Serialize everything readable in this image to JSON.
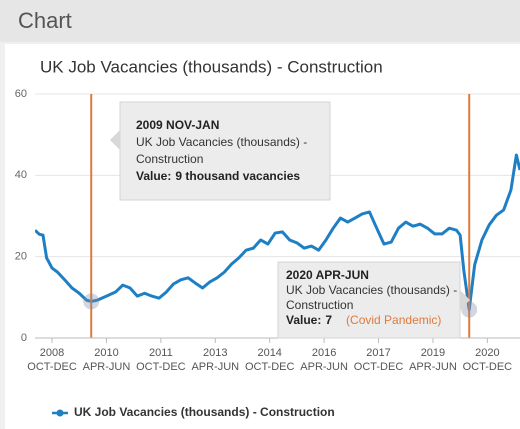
{
  "header": "Chart",
  "chart_data": {
    "type": "line",
    "title": "UK Job Vacancies (thousands) - Construction",
    "series": [
      {
        "name": "UK Job Vacancies (thousands) - Construction",
        "color": "#1f7fc4",
        "x": [
          2008.28,
          2008.4,
          2008.5,
          2008.6,
          2008.75,
          2008.9,
          2009.1,
          2009.3,
          2009.5,
          2009.7,
          2009.83,
          2010.0,
          2010.25,
          2010.5,
          2010.7,
          2010.9,
          2011.1,
          2011.3,
          2011.5,
          2011.7,
          2011.9,
          2012.1,
          2012.3,
          2012.5,
          2012.7,
          2012.9,
          2013.1,
          2013.3,
          2013.5,
          2013.7,
          2013.9,
          2014.1,
          2014.3,
          2014.5,
          2014.7,
          2014.9,
          2015.1,
          2015.3,
          2015.5,
          2015.7,
          2015.9,
          2016.1,
          2016.3,
          2016.5,
          2016.7,
          2016.9,
          2017.1,
          2017.3,
          2017.5,
          2017.7,
          2017.9,
          2018.1,
          2018.3,
          2018.5,
          2018.7,
          2018.9,
          2019.1,
          2019.3,
          2019.5,
          2019.7,
          2019.9,
          2020.0,
          2020.1,
          2020.25,
          2020.4,
          2020.6,
          2020.8,
          2021.0,
          2021.2,
          2021.4,
          2021.55,
          2021.65
        ],
        "values": [
          26.5,
          25.5,
          25.3,
          19.7,
          17.2,
          16.2,
          14.3,
          12.3,
          11,
          9.3,
          9,
          9.3,
          10.3,
          11.3,
          13,
          12.3,
          10.3,
          11,
          10.3,
          9.8,
          11.3,
          13.3,
          14.3,
          14.8,
          13.5,
          12.3,
          13.8,
          14.8,
          16.2,
          18.2,
          19.7,
          21.6,
          22.1,
          24.1,
          23.1,
          25.8,
          26.1,
          24.1,
          23.4,
          22.1,
          22.6,
          21.6,
          24.1,
          27,
          29.5,
          28.5,
          29.5,
          30.5,
          31,
          27,
          23.1,
          23.6,
          27,
          28.5,
          27.5,
          28,
          27,
          25.6,
          25.6,
          27,
          26.5,
          25.3,
          16.7,
          7,
          18,
          24.1,
          27.8,
          30.2,
          31.5,
          36.4,
          45,
          41.3
        ]
      }
    ],
    "xlim": [
      2008.28,
      2021.65
    ],
    "xticks": [
      {
        "value": 2008.75,
        "label": [
          "2008",
          "OCT-DEC"
        ]
      },
      {
        "value": 2010.25,
        "label": [
          "2010",
          "APR-JUN"
        ]
      },
      {
        "value": 2011.75,
        "label": [
          "2011",
          "OCT-DEC"
        ]
      },
      {
        "value": 2013.25,
        "label": [
          "2013",
          "APR-JUN"
        ]
      },
      {
        "value": 2014.75,
        "label": [
          "2014",
          "OCT-DEC"
        ]
      },
      {
        "value": 2016.25,
        "label": [
          "2016",
          "APR-JUN"
        ]
      },
      {
        "value": 2017.75,
        "label": [
          "2017",
          "OCT-DEC"
        ]
      },
      {
        "value": 2019.25,
        "label": [
          "2019",
          "APR-JUN"
        ]
      },
      {
        "value": 2020.75,
        "label": [
          "2020",
          "OCT-DEC"
        ]
      }
    ],
    "ylim": [
      0,
      60
    ],
    "yticks": [
      0,
      20,
      40,
      60
    ],
    "grid": true,
    "legend": "bottom",
    "annotation_color": "#e0793a",
    "annotations": [
      {
        "x": 2009.83,
        "value": 9,
        "title": "2009 NOV-JAN",
        "lines": [
          "UK Job Vacancies (thousands) -",
          "Construction"
        ],
        "value_prefix": "Value:",
        "value_label": "9 thousand vacancies"
      },
      {
        "x": 2020.25,
        "value": 7,
        "title": "2020 APR-JUN",
        "lines": [
          "UK Job Vacancies (thousands) -",
          "Construction"
        ],
        "value_prefix": "Value:",
        "value_label": "7",
        "note": "(Covid Pandemic)"
      }
    ]
  }
}
